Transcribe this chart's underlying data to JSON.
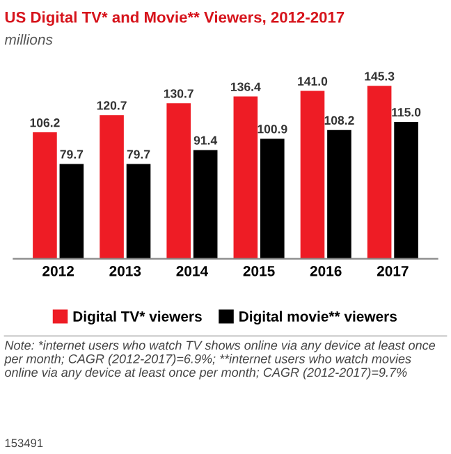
{
  "chart_data": {
    "type": "bar",
    "title": "US Digital TV* and Movie** Viewers, 2012-2017",
    "subtitle": "millions",
    "categories": [
      "2012",
      "2013",
      "2014",
      "2015",
      "2016",
      "2017"
    ],
    "series": [
      {
        "name": "Digital TV* viewers",
        "color": "#ee1c25",
        "values": [
          106.2,
          120.7,
          130.7,
          136.4,
          141.0,
          145.3
        ],
        "value_labels": [
          "106.2",
          "120.7",
          "130.7",
          "136.4",
          "141.0",
          "145.3"
        ]
      },
      {
        "name": "Digital movie** viewers",
        "color": "#000000",
        "values": [
          79.7,
          79.7,
          91.4,
          100.9,
          108.2,
          115.0
        ],
        "value_labels": [
          "79.7",
          "79.7",
          "91.4",
          "100.9",
          "108.2",
          "115.0"
        ]
      }
    ],
    "legend": "bottom",
    "grid": false,
    "tick_labels": "x",
    "annotations": [
      "Note: *internet users who watch TV shows online via any device at least once per month; CAGR (2012-2017)=6.9%; **internet users who watch movies online via any device at least once per month; CAGR (2012-2017)=9.7%",
      "153491"
    ]
  }
}
